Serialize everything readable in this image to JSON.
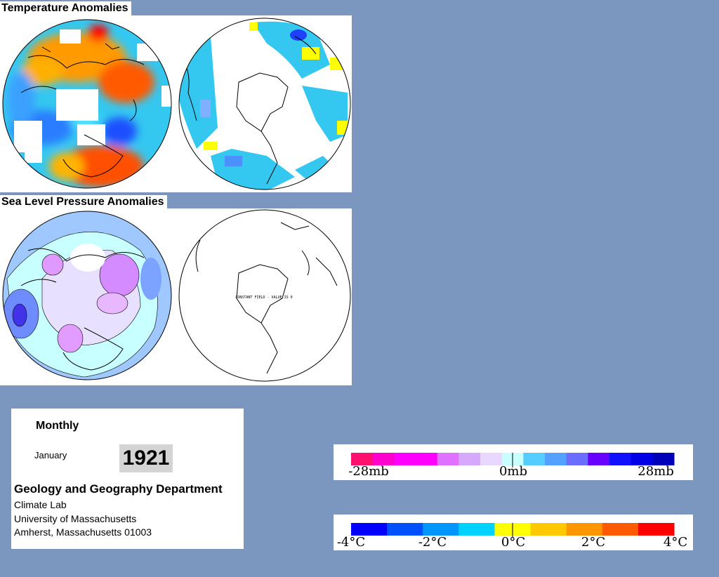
{
  "sections": {
    "temperature_title": "Temperature Anomalies",
    "pressure_title": "Sea Level Pressure Anomalies",
    "constant_field_note": "CONSTANT FIELD - VALUE IS 0"
  },
  "info": {
    "period_type": "Monthly",
    "month": "January",
    "year": "1921",
    "department": "Geology and Geography Department",
    "lab": "Climate Lab",
    "university": "University of Massachusetts",
    "address": "Amherst, Massachusetts 01003"
  },
  "pressure_scale": {
    "colors": [
      "#ff0f6e",
      "#ff00cf",
      "#ff00ff",
      "#ff00ff",
      "#e070ff",
      "#d6a8ff",
      "#e8d8ff",
      "#c8ffff",
      "#56cdff",
      "#52a0ff",
      "#6a6dff",
      "#6800ff",
      "#1010ff",
      "#0000e6",
      "#0000bb"
    ],
    "labels": [
      "-28mb",
      "0mb",
      "28mb"
    ]
  },
  "temperature_scale": {
    "colors": [
      "#0000ff",
      "#0050ff",
      "#0096ff",
      "#00d2ff",
      "#ffff00",
      "#ffc800",
      "#ff9600",
      "#ff5a00",
      "#ff0000"
    ],
    "labels": [
      "-4°C",
      "-2°C",
      "0°C",
      "2°C",
      "4°C"
    ]
  }
}
